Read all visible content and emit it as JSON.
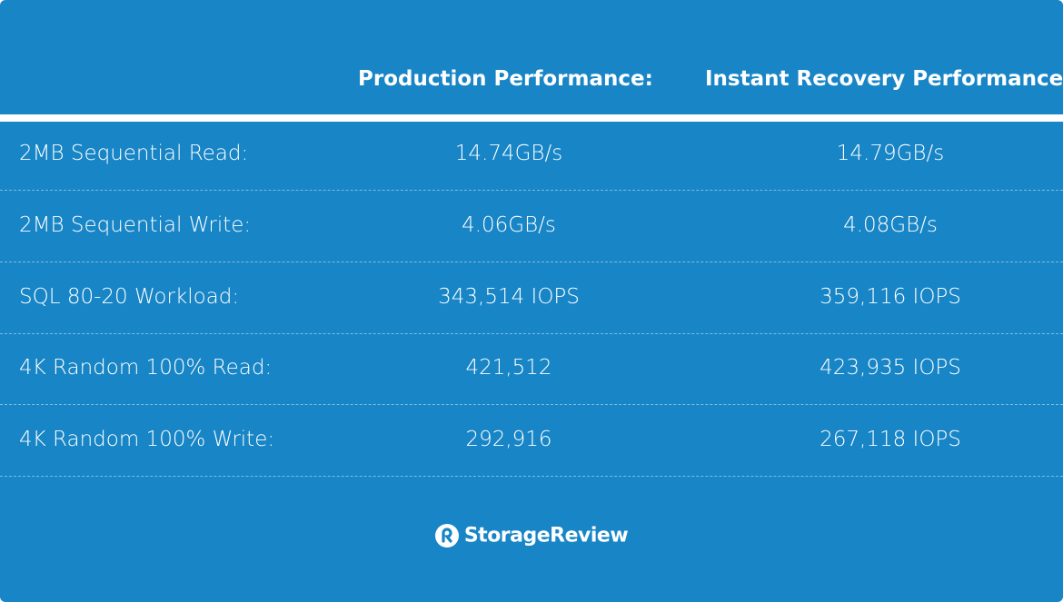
{
  "table": {
    "headers": [
      "Production Performance:",
      "Instant Recovery Performance"
    ],
    "rows": [
      [
        "2MB Sequential Read:",
        "14.74GB/s",
        "14.79GB/s"
      ],
      [
        "2MB Sequential Write:",
        "4.06GB/s",
        "4.08GB/s"
      ],
      [
        "SQL 80-20 Workload:",
        "343,514 IOPS",
        "359,116 IOPS"
      ],
      [
        "4K Random 100% Read:",
        "421,512",
        "423,935 IOPS"
      ],
      [
        "4K Random 100% Write:",
        "292,916",
        "267,118 IOPS"
      ]
    ]
  },
  "footer": {
    "brand": "StorageReview"
  }
}
